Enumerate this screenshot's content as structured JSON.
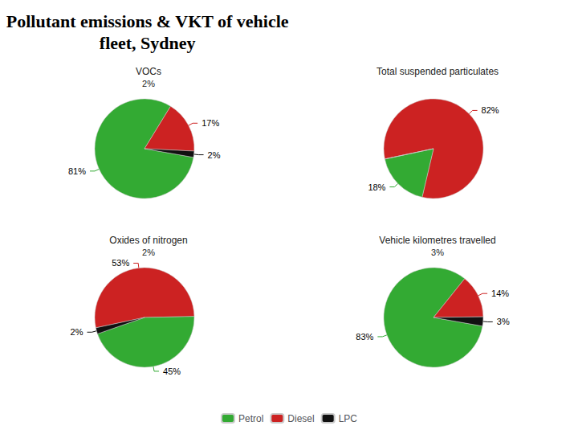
{
  "title": "Pollutant emissions & VKT of vehicle\nfleet, Sydney",
  "chart_data": [
    {
      "type": "pie",
      "title": "VOCs",
      "subtitle": "2%",
      "categories": [
        "Petrol",
        "Diesel",
        "LPC"
      ],
      "values": [
        81,
        17,
        2
      ],
      "value_labels": [
        "81%",
        "17%",
        "2%"
      ],
      "colors": [
        "#33aa33",
        "#cc2222",
        "#111111"
      ],
      "data_labels": true,
      "legend": "bottom"
    },
    {
      "type": "pie",
      "title": "Total suspended particulates",
      "categories": [
        "Diesel",
        "Petrol",
        "LPC"
      ],
      "values": [
        82,
        18,
        0
      ],
      "value_labels": [
        "82%",
        "18%",
        null
      ],
      "colors": [
        "#cc2222",
        "#33aa33",
        "#111111"
      ],
      "data_labels": true,
      "legend": "bottom"
    },
    {
      "type": "pie",
      "title": "Oxides of nitrogen",
      "subtitle": "2%",
      "categories": [
        "Diesel",
        "Petrol",
        "LPC"
      ],
      "values": [
        53,
        45,
        2
      ],
      "value_labels": [
        "53%",
        "45%",
        "2%"
      ],
      "colors": [
        "#cc2222",
        "#33aa33",
        "#111111"
      ],
      "data_labels": true,
      "legend": "bottom"
    },
    {
      "type": "pie",
      "title": "Vehicle kilometres travelled",
      "subtitle": "3%",
      "categories": [
        "Petrol",
        "Diesel",
        "LPC"
      ],
      "values": [
        83,
        14,
        3
      ],
      "value_labels": [
        "83%",
        "14%",
        "3%"
      ],
      "colors": [
        "#33aa33",
        "#cc2222",
        "#111111"
      ],
      "data_labels": true,
      "legend": "bottom"
    }
  ]
}
